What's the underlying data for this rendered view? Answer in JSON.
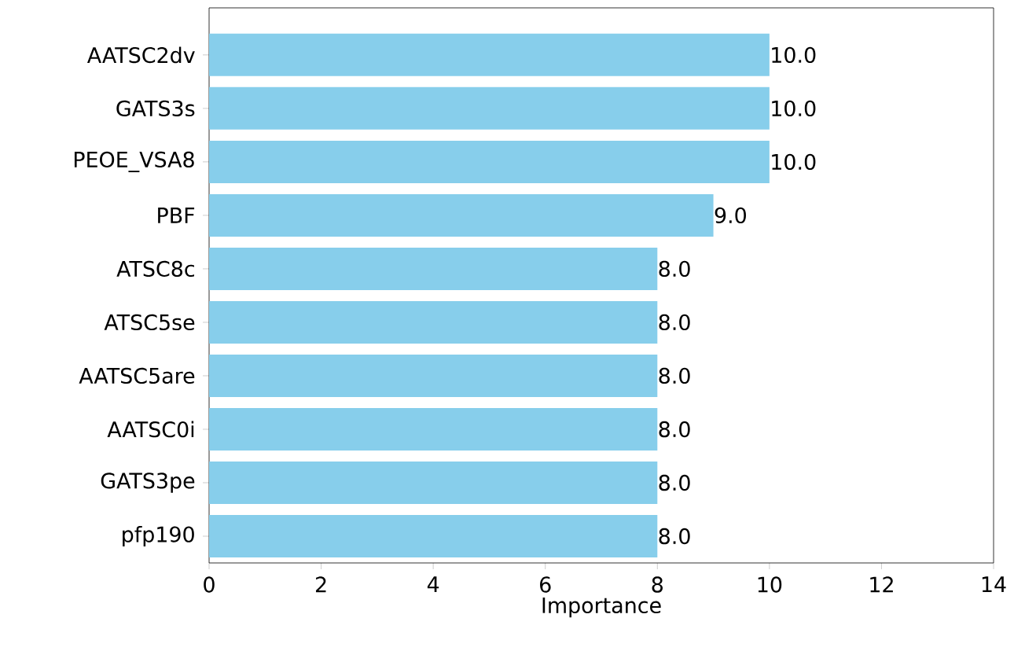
{
  "chart_data": {
    "type": "bar",
    "orientation": "horizontal",
    "xlabel": "Importance",
    "categories": [
      "AATSC2dv",
      "GATS3s",
      "PEOE_VSA8",
      "PBF",
      "ATSC8c",
      "ATSC5se",
      "AATSC5are",
      "AATSC0i",
      "GATS3pe",
      "pfp190"
    ],
    "values": [
      10,
      10,
      10,
      9,
      8,
      8,
      8,
      8,
      8,
      8
    ],
    "value_labels": [
      "10.0",
      "10.0",
      "10.0",
      "9.0",
      "8.0",
      "8.0",
      "8.0",
      "8.0",
      "8.0",
      "8.0"
    ],
    "color": "#87ceeb",
    "xlim": [
      0,
      14
    ],
    "xticks": [
      0,
      2,
      4,
      6,
      8,
      10,
      12,
      14
    ]
  }
}
